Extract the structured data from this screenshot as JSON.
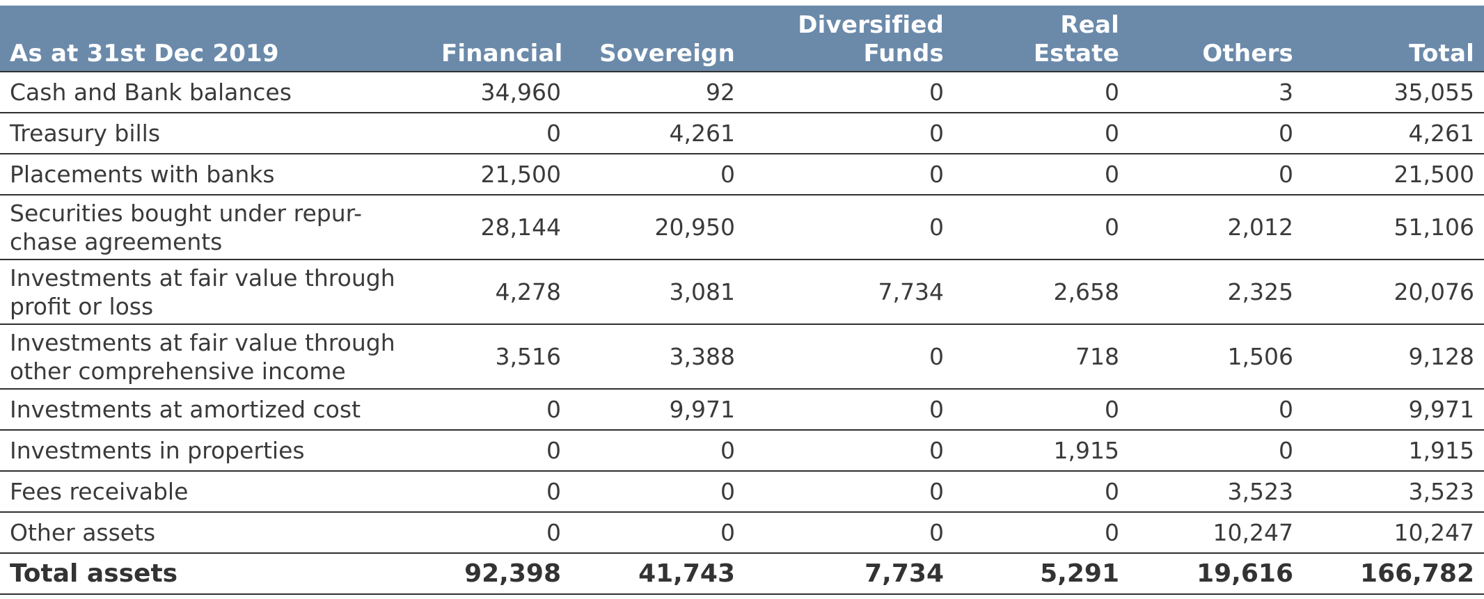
{
  "table": {
    "headers": [
      "As at 31st Dec 2019",
      "Financial",
      "Sovereign",
      "Diversified Funds",
      "Real Estate",
      "Others",
      "Total"
    ],
    "header_lines": [
      [
        "As at 31st Dec 2019"
      ],
      [
        "Financial"
      ],
      [
        "Sovereign"
      ],
      [
        "Diversified",
        "Funds"
      ],
      [
        "Real",
        "Estate"
      ],
      [
        "Others"
      ],
      [
        "Total"
      ]
    ],
    "rows": [
      {
        "label_lines": [
          "Cash and Bank balances"
        ],
        "values": [
          "34,960",
          "92",
          "0",
          "0",
          "3",
          "35,055"
        ]
      },
      {
        "label_lines": [
          "Treasury bills"
        ],
        "values": [
          "0",
          "4,261",
          "0",
          "0",
          "0",
          "4,261"
        ]
      },
      {
        "label_lines": [
          "Placements with banks"
        ],
        "values": [
          "21,500",
          "0",
          "0",
          "0",
          "0",
          "21,500"
        ]
      },
      {
        "label_lines": [
          "Securities bought under repur-",
          "chase agreements"
        ],
        "values": [
          "28,144",
          "20,950",
          "0",
          "0",
          "2,012",
          "51,106"
        ]
      },
      {
        "label_lines": [
          "Investments at fair value through",
          "profit or loss"
        ],
        "values": [
          "4,278",
          "3,081",
          "7,734",
          "2,658",
          "2,325",
          "20,076"
        ]
      },
      {
        "label_lines": [
          "Investments at fair value through",
          "other comprehensive income"
        ],
        "values": [
          "3,516",
          "3,388",
          "0",
          "718",
          "1,506",
          "9,128"
        ]
      },
      {
        "label_lines": [
          "Investments at amortized cost"
        ],
        "values": [
          "0",
          "9,971",
          "0",
          "0",
          "0",
          "9,971"
        ]
      },
      {
        "label_lines": [
          "Investments in properties"
        ],
        "values": [
          "0",
          "0",
          "0",
          "1,915",
          "0",
          "1,915"
        ]
      },
      {
        "label_lines": [
          "Fees receivable"
        ],
        "values": [
          "0",
          "0",
          "0",
          "0",
          "3,523",
          "3,523"
        ]
      },
      {
        "label_lines": [
          "Other assets"
        ],
        "values": [
          "0",
          "0",
          "0",
          "0",
          "10,247",
          "10,247"
        ]
      }
    ],
    "total": {
      "label": "Total assets",
      "values": [
        "92,398",
        "41,743",
        "7,734",
        "5,291",
        "19,616",
        "166,782"
      ]
    }
  },
  "colors": {
    "header_bg": "#6b8aaa",
    "header_text": "#ffffff",
    "body_text": "#3a3a3a",
    "rule": "#2f2f2f"
  }
}
